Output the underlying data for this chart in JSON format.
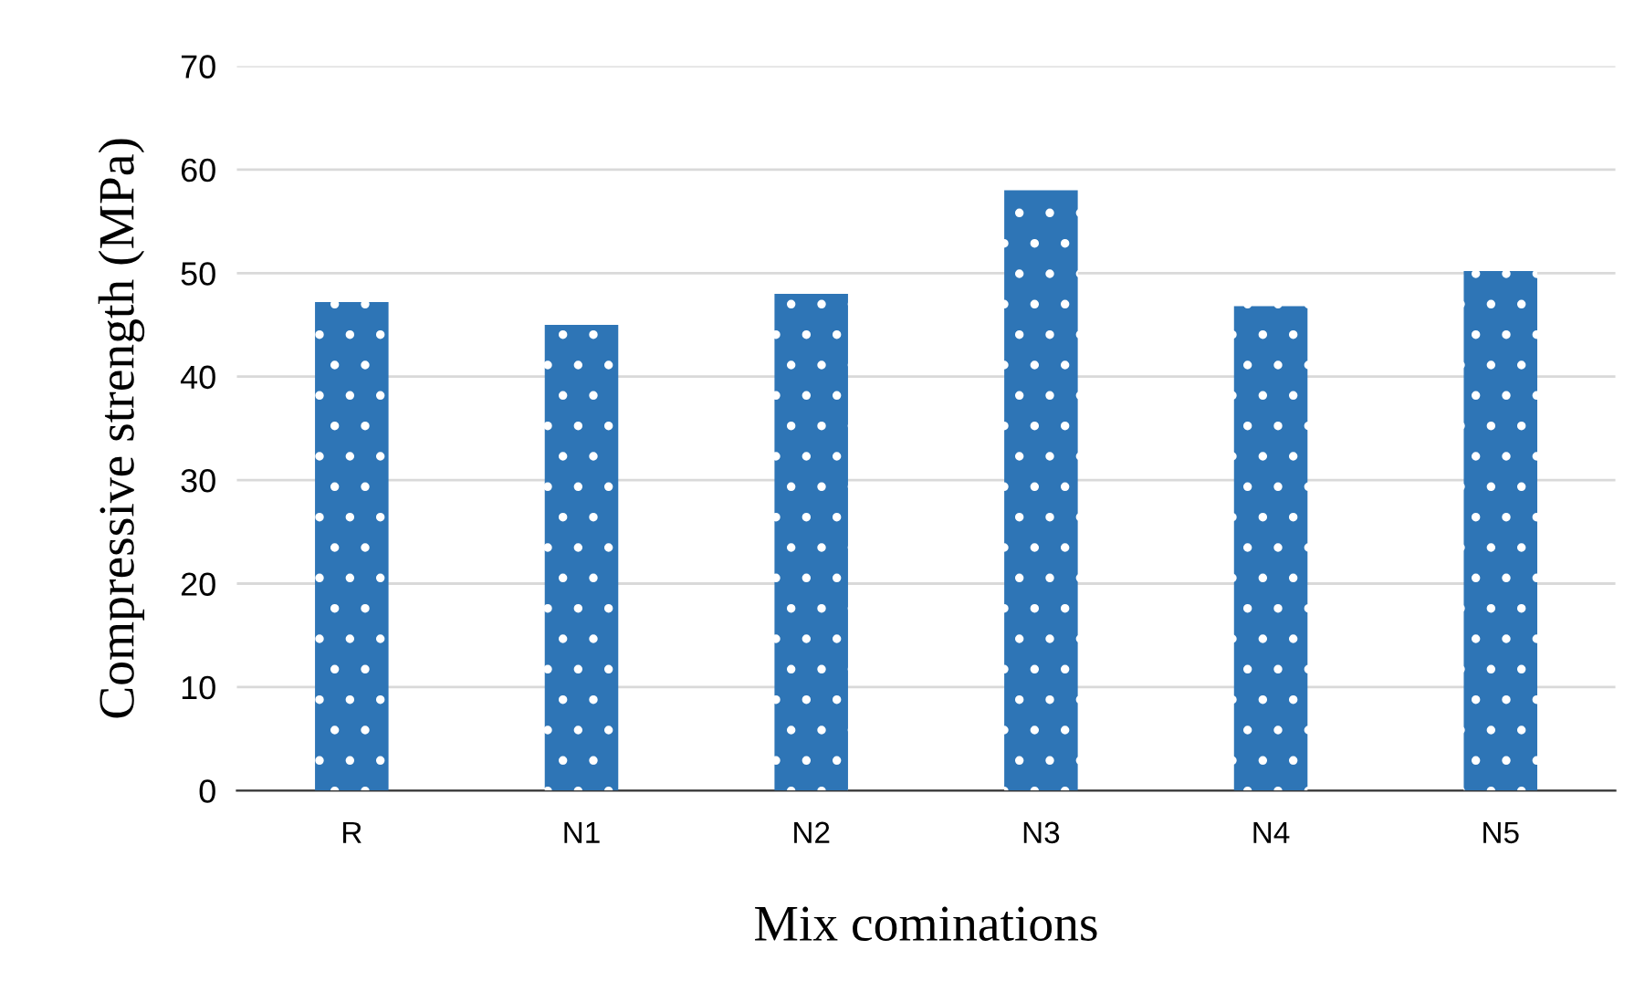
{
  "chart_data": {
    "type": "bar",
    "xlabel": "Mix cominations",
    "ylabel": "Compressive strength (MPa)",
    "categories": [
      "R",
      "N1",
      "N2",
      "N3",
      "N4",
      "N5"
    ],
    "values": [
      47.2,
      45,
      48,
      58,
      46.8,
      50.2
    ],
    "color": "#2e75b6",
    "ylim": [
      0,
      70
    ],
    "yticks": [
      0,
      10,
      20,
      30,
      40,
      50,
      60,
      70
    ],
    "grid": "y"
  }
}
